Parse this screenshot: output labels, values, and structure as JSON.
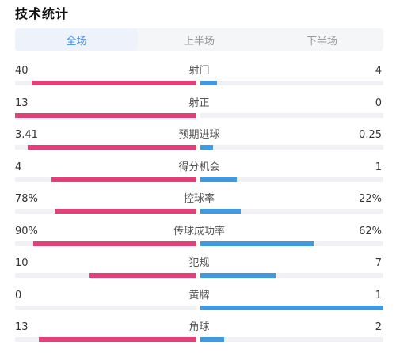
{
  "page": {
    "title": "技术统计"
  },
  "tabs": [
    {
      "label": "全场",
      "active": true
    },
    {
      "label": "上半场",
      "active": false
    },
    {
      "label": "下半场",
      "active": false
    }
  ],
  "colors": {
    "home": "#e63e78",
    "away": "#3f9ae6",
    "active_tab": "#3f8ee8"
  },
  "stats": [
    {
      "label": "射门",
      "left": "40",
      "right": "4",
      "left_fill": 0.91,
      "right_fill": 0.09
    },
    {
      "label": "射正",
      "left": "13",
      "right": "0",
      "left_fill": 1.0,
      "right_fill": 0.0
    },
    {
      "label": "预期进球",
      "left": "3.41",
      "right": "0.25",
      "left_fill": 0.93,
      "right_fill": 0.07
    },
    {
      "label": "得分机会",
      "left": "4",
      "right": "1",
      "left_fill": 0.8,
      "right_fill": 0.2
    },
    {
      "label": "控球率",
      "left": "78%",
      "right": "22%",
      "left_fill": 0.78,
      "right_fill": 0.22
    },
    {
      "label": "传球成功率",
      "left": "90%",
      "right": "62%",
      "left_fill": 0.9,
      "right_fill": 0.62
    },
    {
      "label": "犯规",
      "left": "10",
      "right": "7",
      "left_fill": 0.59,
      "right_fill": 0.41
    },
    {
      "label": "黄牌",
      "left": "0",
      "right": "1",
      "left_fill": 0.0,
      "right_fill": 1.0
    },
    {
      "label": "角球",
      "left": "13",
      "right": "2",
      "left_fill": 0.87,
      "right_fill": 0.13
    }
  ]
}
